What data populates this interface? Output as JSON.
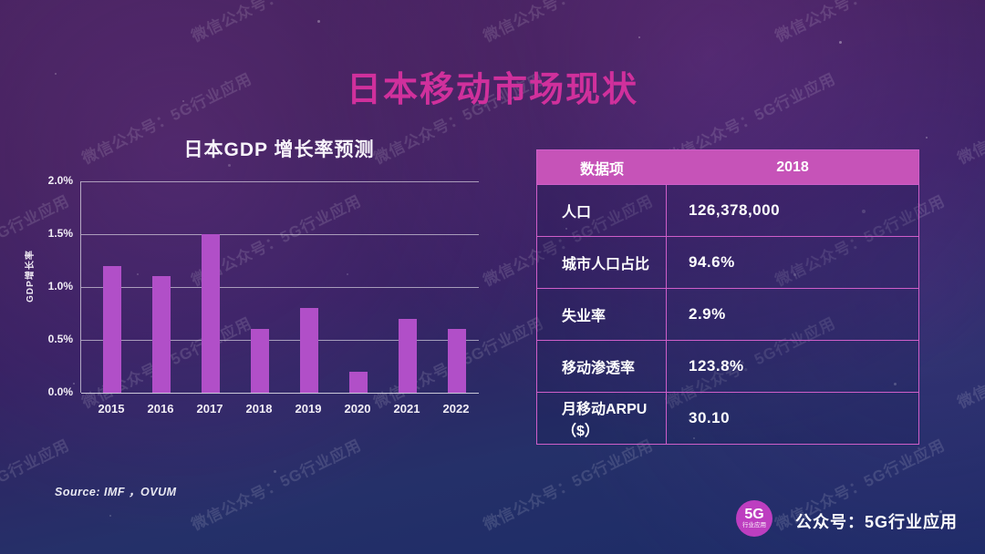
{
  "slide": {
    "title": "日本移动市场现状",
    "title_color": "#d0309c"
  },
  "watermark": {
    "text": "微信公众号：5G行业应用"
  },
  "chart_data": {
    "type": "bar",
    "title": "日本GDP 增长率预测",
    "categories": [
      "2015",
      "2016",
      "2017",
      "2018",
      "2019",
      "2020",
      "2021",
      "2022"
    ],
    "values": [
      1.2,
      1.1,
      1.5,
      0.6,
      0.8,
      0.2,
      0.7,
      0.6
    ],
    "unit": "%",
    "xlabel": "",
    "ylabel": "GDP增长率",
    "ylim": [
      0,
      2.0
    ],
    "yticks": [
      "2.0%",
      "1.5%",
      "1.0%",
      "0.5%",
      "0.0%"
    ],
    "grid": true,
    "legend": false,
    "bar_color": "#b14fc8",
    "source": "Source: IMF ，OVUM"
  },
  "table": {
    "columns": [
      "数据项",
      "2018"
    ],
    "rows": [
      {
        "label": "人口",
        "value": "126,378,000"
      },
      {
        "label": "城市人口占比",
        "value": "94.6%"
      },
      {
        "label": "失业率",
        "value": "2.9%"
      },
      {
        "label": "移动渗透率",
        "value": "123.8%"
      },
      {
        "label": "月移动ARPU（$）",
        "value": "30.10"
      }
    ],
    "header_bg": "#c653b8",
    "border_color": "#cf5ec9"
  },
  "footer": {
    "badge_line1": "5G",
    "badge_line2": "行业应用",
    "badge_color": "#bd3ec0",
    "account_label": "公众号：5G行业应用"
  }
}
